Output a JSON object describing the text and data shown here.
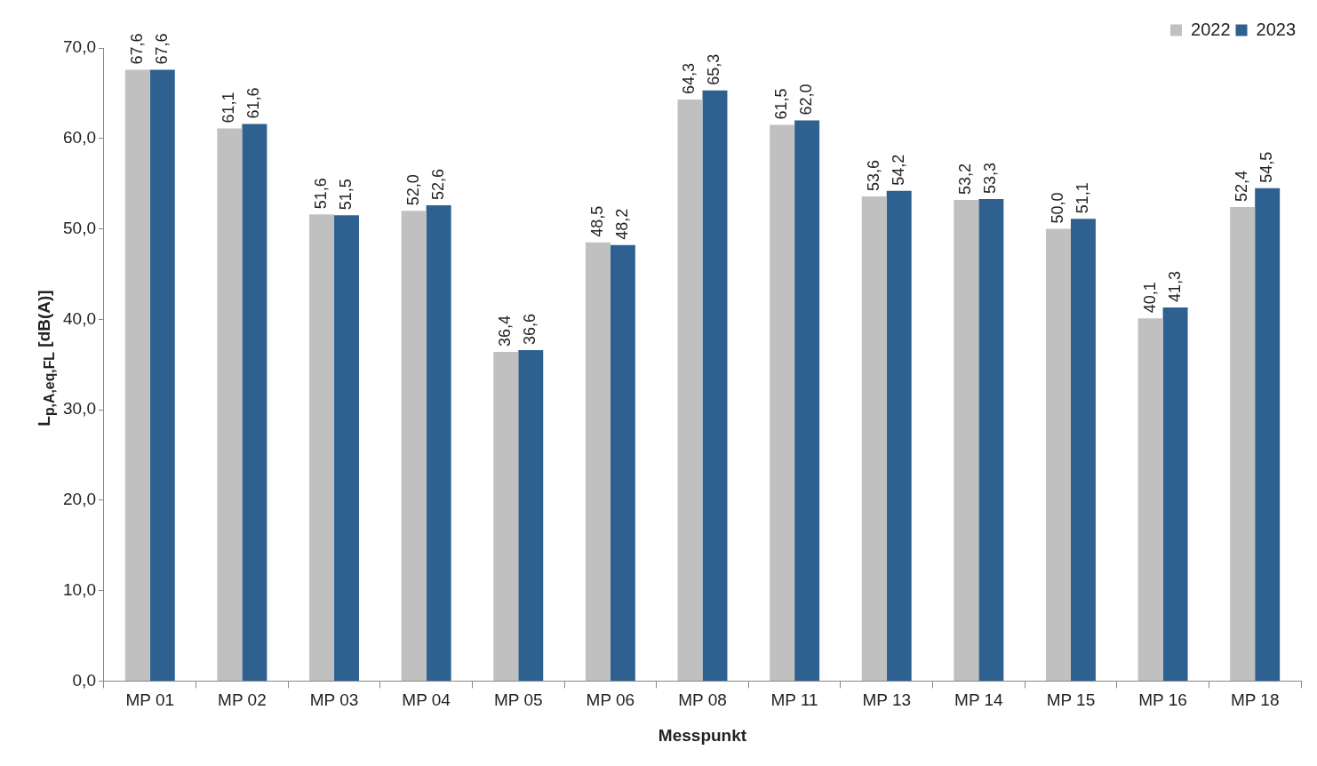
{
  "chart_data": {
    "type": "bar",
    "xlabel": "Messpunkt",
    "ylabel": "L$_{p,A,eq,FL}$ [dB(A)]",
    "categories": [
      "MP 01",
      "MP 02",
      "MP 03",
      "MP 04",
      "MP 05",
      "MP 06",
      "MP 08",
      "MP 11",
      "MP 13",
      "MP 14",
      "MP 15",
      "MP 16",
      "MP 18"
    ],
    "series": [
      {
        "name": "2022",
        "color": "#c0c0c0",
        "values": [
          67.6,
          61.1,
          51.6,
          52.0,
          36.4,
          48.5,
          64.3,
          61.5,
          53.6,
          53.2,
          50.0,
          40.1,
          52.4
        ],
        "value_labels": [
          "67,6",
          "61,1",
          "51,6",
          "52,0",
          "36,4",
          "48,5",
          "64,3",
          "61,5",
          "53,6",
          "53,2",
          "50,0",
          "40,1",
          "52,4"
        ]
      },
      {
        "name": "2023",
        "color": "#2e6190",
        "values": [
          67.6,
          61.6,
          51.5,
          52.6,
          36.6,
          48.2,
          65.3,
          62.0,
          54.2,
          53.3,
          51.1,
          41.3,
          54.5
        ],
        "value_labels": [
          "67,6",
          "61,6",
          "51,5",
          "52,6",
          "36,6",
          "48,2",
          "65,3",
          "62,0",
          "54,2",
          "53,3",
          "51,1",
          "41,3",
          "54,5"
        ]
      }
    ],
    "ylim": [
      0,
      70
    ],
    "yticks": [
      {
        "value": 0,
        "label": "0,0"
      },
      {
        "value": 10,
        "label": "10,0"
      },
      {
        "value": 20,
        "label": "20,0"
      },
      {
        "value": 30,
        "label": "30,0"
      },
      {
        "value": 40,
        "label": "40,0"
      },
      {
        "value": 50,
        "label": "50,0"
      },
      {
        "value": 60,
        "label": "60,0"
      },
      {
        "value": 70,
        "label": "70,0"
      }
    ],
    "legend": "top right"
  }
}
